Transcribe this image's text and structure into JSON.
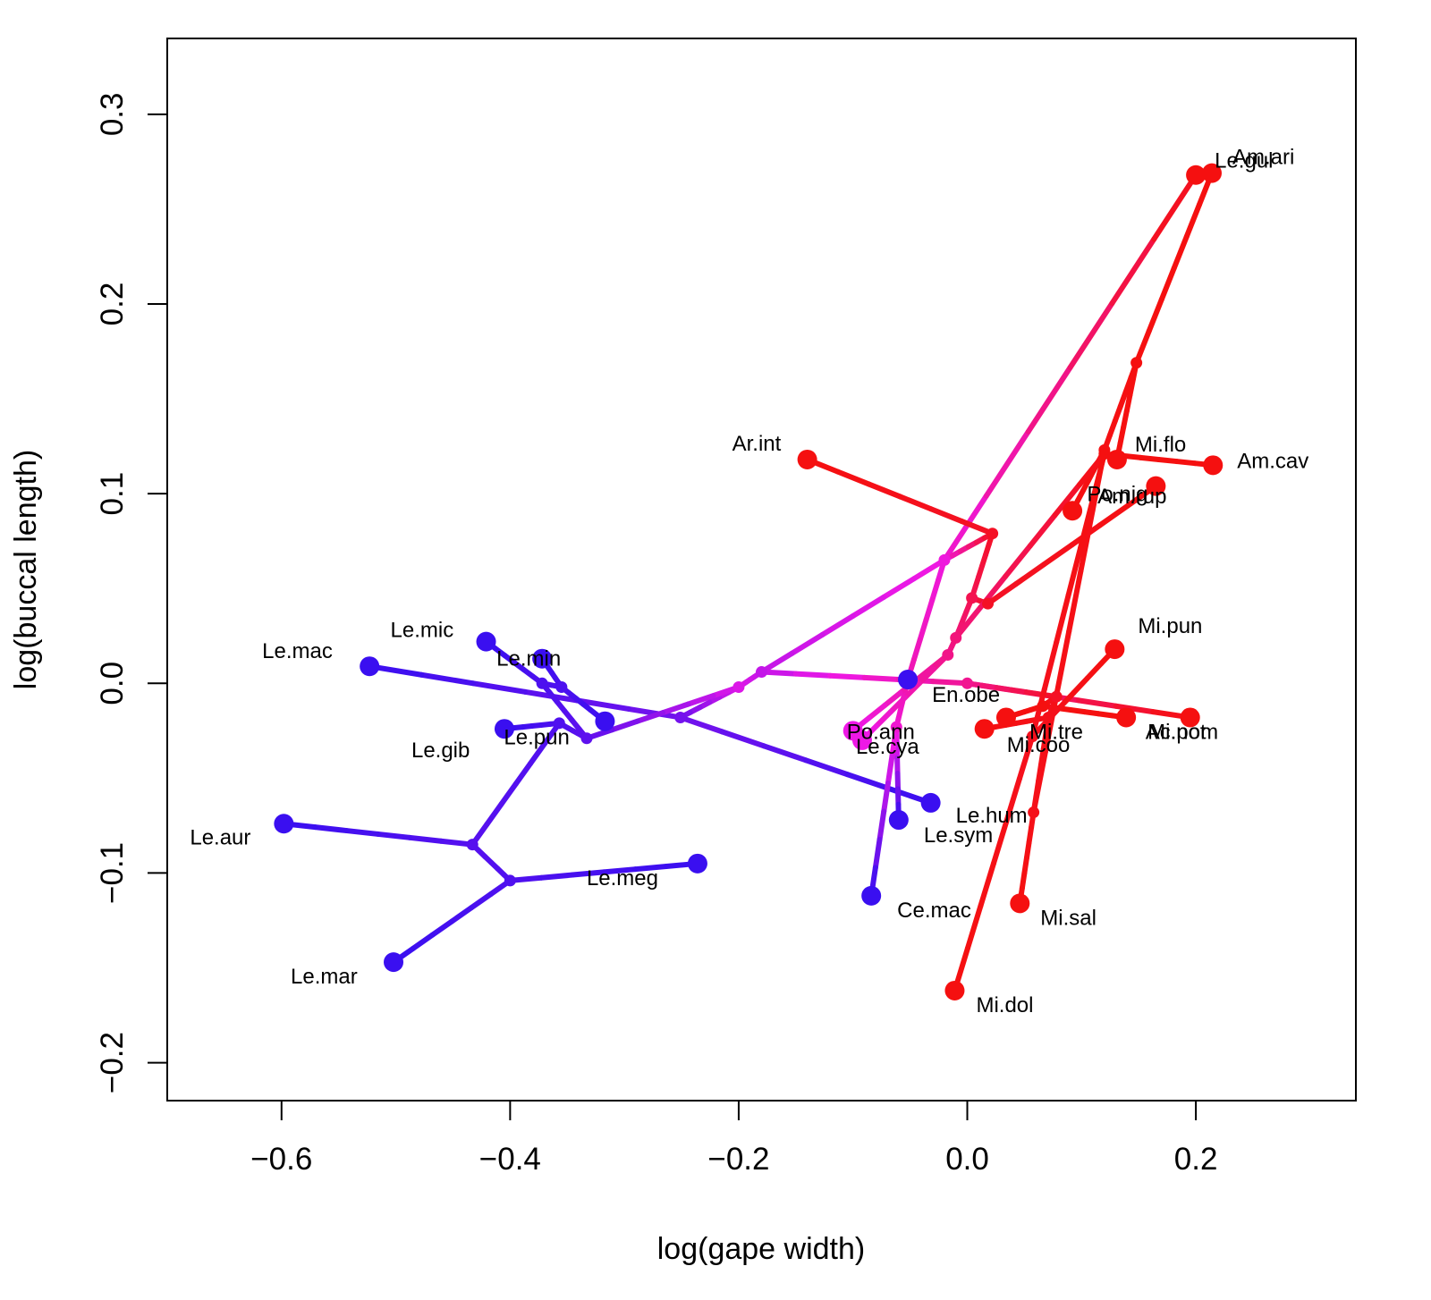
{
  "chart_data": {
    "type": "scatter",
    "xlabel": "log(gape width)",
    "ylabel": "log(buccal length)",
    "xlim": [
      -0.7,
      0.34
    ],
    "ylim": [
      -0.22,
      0.34
    ],
    "xticks": [
      -0.6,
      -0.4,
      -0.2,
      0.0,
      0.2
    ],
    "xtick_labels": [
      "−0.6",
      "−0.4",
      "−0.2",
      "0.0",
      "0.2"
    ],
    "yticks": [
      -0.2,
      -0.1,
      0.0,
      0.1,
      0.2,
      0.3
    ],
    "ytick_labels": [
      "−0.2",
      "−0.1",
      "0.0",
      "0.1",
      "0.2",
      "0.3"
    ],
    "grid": false,
    "colors": {
      "low": "#3a0ff0",
      "mid": "#ee18e6",
      "high": "#f51010"
    },
    "tips": [
      {
        "name": "Le.mac",
        "x": -0.523,
        "y": 0.009
      },
      {
        "name": "Le.mic",
        "x": -0.421,
        "y": 0.022
      },
      {
        "name": "Le.min",
        "x": -0.372,
        "y": 0.013
      },
      {
        "name": "Le.gib",
        "x": -0.405,
        "y": -0.024
      },
      {
        "name": "Le.pun",
        "x": -0.317,
        "y": -0.02
      },
      {
        "name": "Le.aur",
        "x": -0.598,
        "y": -0.074
      },
      {
        "name": "Le.meg",
        "x": -0.236,
        "y": -0.095
      },
      {
        "name": "Le.mar",
        "x": -0.502,
        "y": -0.147
      },
      {
        "name": "Le.hum",
        "x": -0.032,
        "y": -0.063
      },
      {
        "name": "Le.sym",
        "x": -0.06,
        "y": -0.072
      },
      {
        "name": "Ce.mac",
        "x": -0.084,
        "y": -0.112
      },
      {
        "name": "En.obe",
        "x": -0.052,
        "y": 0.002
      },
      {
        "name": "Po.ann",
        "x": -0.1,
        "y": -0.025
      },
      {
        "name": "Le.cya",
        "x": -0.092,
        "y": -0.03
      },
      {
        "name": "Ar.int",
        "x": -0.14,
        "y": 0.118
      },
      {
        "name": "Le.gul",
        "x": 0.2,
        "y": 0.268
      },
      {
        "name": "Am.ari",
        "x": 0.214,
        "y": 0.269
      },
      {
        "name": "Mi.flo",
        "x": 0.131,
        "y": 0.118
      },
      {
        "name": "Am.cav",
        "x": 0.215,
        "y": 0.115
      },
      {
        "name": "Po.nig",
        "x": 0.165,
        "y": 0.104
      },
      {
        "name": "Am.rup",
        "x": 0.092,
        "y": 0.091
      },
      {
        "name": "Mi.pun",
        "x": 0.129,
        "y": 0.018
      },
      {
        "name": "Mi.not",
        "x": 0.139,
        "y": -0.018
      },
      {
        "name": "Ac.pom",
        "x": 0.195,
        "y": -0.018
      },
      {
        "name": "Mi.tre",
        "x": 0.034,
        "y": -0.018
      },
      {
        "name": "Mi.coo",
        "x": 0.015,
        "y": -0.024
      },
      {
        "name": "Mi.sal",
        "x": 0.046,
        "y": -0.116
      },
      {
        "name": "Mi.dol",
        "x": -0.011,
        "y": -0.162
      }
    ]
  }
}
